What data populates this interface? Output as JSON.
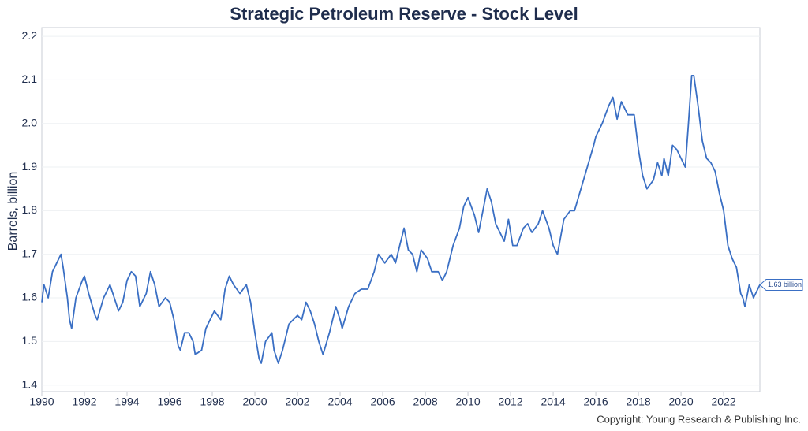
{
  "chart_data": {
    "type": "line",
    "title": "Strategic Petroleum Reserve - Stock Level",
    "y_label": "Barrels, billion",
    "copyright": "Copyright: Young Research & Publishing Inc.",
    "x": [
      1990.0,
      1990.1,
      1990.3,
      1990.5,
      1990.8,
      1990.9,
      1991.0,
      1991.2,
      1991.3,
      1991.4,
      1991.6,
      1991.9,
      1992.0,
      1992.2,
      1992.5,
      1992.6,
      1992.9,
      1993.2,
      1993.4,
      1993.6,
      1993.8,
      1994.0,
      1994.2,
      1994.4,
      1994.6,
      1994.9,
      1995.1,
      1995.3,
      1995.5,
      1995.8,
      1996.0,
      1996.2,
      1996.4,
      1996.5,
      1996.7,
      1996.9,
      1997.1,
      1997.2,
      1997.5,
      1997.7,
      1997.9,
      1998.1,
      1998.4,
      1998.6,
      1998.8,
      1999.0,
      1999.3,
      1999.6,
      1999.8,
      2000.0,
      2000.2,
      2000.3,
      2000.5,
      2000.8,
      2000.9,
      2001.1,
      2001.3,
      2001.6,
      2001.8,
      2002.0,
      2002.2,
      2002.4,
      2002.6,
      2002.8,
      2003.0,
      2003.2,
      2003.5,
      2003.8,
      2004.0,
      2004.1,
      2004.4,
      2004.7,
      2005.0,
      2005.3,
      2005.6,
      2005.8,
      2006.1,
      2006.4,
      2006.6,
      2006.8,
      2007.0,
      2007.2,
      2007.4,
      2007.6,
      2007.8,
      2008.1,
      2008.3,
      2008.6,
      2008.8,
      2009.0,
      2009.3,
      2009.6,
      2009.8,
      2010.0,
      2010.3,
      2010.5,
      2010.7,
      2010.9,
      2011.1,
      2011.3,
      2011.5,
      2011.7,
      2011.9,
      2012.1,
      2012.3,
      2012.6,
      2012.8,
      2013.0,
      2013.3,
      2013.5,
      2013.8,
      2014.0,
      2014.2,
      2014.5,
      2014.8,
      2015.0,
      2015.3,
      2015.6,
      2015.9,
      2016.0,
      2016.3,
      2016.6,
      2016.8,
      2017.0,
      2017.2,
      2017.5,
      2017.8,
      2018.0,
      2018.2,
      2018.4,
      2018.7,
      2018.9,
      2019.1,
      2019.2,
      2019.4,
      2019.6,
      2019.8,
      2020.0,
      2020.2,
      2020.35,
      2020.5,
      2020.6,
      2020.8,
      2021.0,
      2021.2,
      2021.4,
      2021.6,
      2021.8,
      2022.0,
      2022.2,
      2022.4,
      2022.6,
      2022.8,
      2022.9,
      2023.0,
      2023.2,
      2023.4,
      2023.6,
      2023.7
    ],
    "series": [
      {
        "name": "Stock Level",
        "color": "#3a6fc4",
        "values": [
          1.59,
          1.63,
          1.6,
          1.66,
          1.69,
          1.7,
          1.67,
          1.6,
          1.55,
          1.53,
          1.6,
          1.64,
          1.65,
          1.61,
          1.56,
          1.55,
          1.6,
          1.63,
          1.6,
          1.57,
          1.59,
          1.64,
          1.66,
          1.65,
          1.58,
          1.61,
          1.66,
          1.63,
          1.58,
          1.6,
          1.59,
          1.55,
          1.49,
          1.48,
          1.52,
          1.52,
          1.5,
          1.47,
          1.48,
          1.53,
          1.55,
          1.57,
          1.55,
          1.62,
          1.65,
          1.63,
          1.61,
          1.63,
          1.59,
          1.52,
          1.46,
          1.45,
          1.5,
          1.52,
          1.48,
          1.45,
          1.48,
          1.54,
          1.55,
          1.56,
          1.55,
          1.59,
          1.57,
          1.54,
          1.5,
          1.47,
          1.52,
          1.58,
          1.55,
          1.53,
          1.58,
          1.61,
          1.62,
          1.62,
          1.66,
          1.7,
          1.68,
          1.7,
          1.68,
          1.72,
          1.76,
          1.71,
          1.7,
          1.66,
          1.71,
          1.69,
          1.66,
          1.66,
          1.64,
          1.66,
          1.72,
          1.76,
          1.81,
          1.83,
          1.79,
          1.75,
          1.8,
          1.85,
          1.82,
          1.77,
          1.75,
          1.73,
          1.78,
          1.72,
          1.72,
          1.76,
          1.77,
          1.75,
          1.77,
          1.8,
          1.76,
          1.72,
          1.7,
          1.78,
          1.8,
          1.8,
          1.85,
          1.9,
          1.95,
          1.97,
          2.0,
          2.04,
          2.06,
          2.01,
          2.05,
          2.02,
          2.02,
          1.94,
          1.88,
          1.85,
          1.87,
          1.91,
          1.88,
          1.92,
          1.88,
          1.95,
          1.94,
          1.92,
          1.9,
          2.0,
          2.11,
          2.11,
          2.04,
          1.96,
          1.92,
          1.91,
          1.89,
          1.84,
          1.8,
          1.72,
          1.69,
          1.67,
          1.61,
          1.6,
          1.58,
          1.63,
          1.6,
          1.62,
          1.63
        ]
      }
    ],
    "annotation": {
      "x": 2023.7,
      "value": 1.63,
      "label": "1.63 billion"
    },
    "xlim": [
      1990,
      2023.7
    ],
    "xticks": [
      1990,
      1992,
      1994,
      1996,
      1998,
      2000,
      2002,
      2004,
      2006,
      2008,
      2010,
      2012,
      2014,
      2016,
      2018,
      2020,
      2022
    ],
    "ylim": [
      1.385,
      2.22
    ],
    "yticks": [
      1.4,
      1.5,
      1.6,
      1.7,
      1.8,
      1.9,
      {
        "value": 2,
        "label": "2.0"
      },
      2.1,
      2.2
    ],
    "grid": true
  }
}
